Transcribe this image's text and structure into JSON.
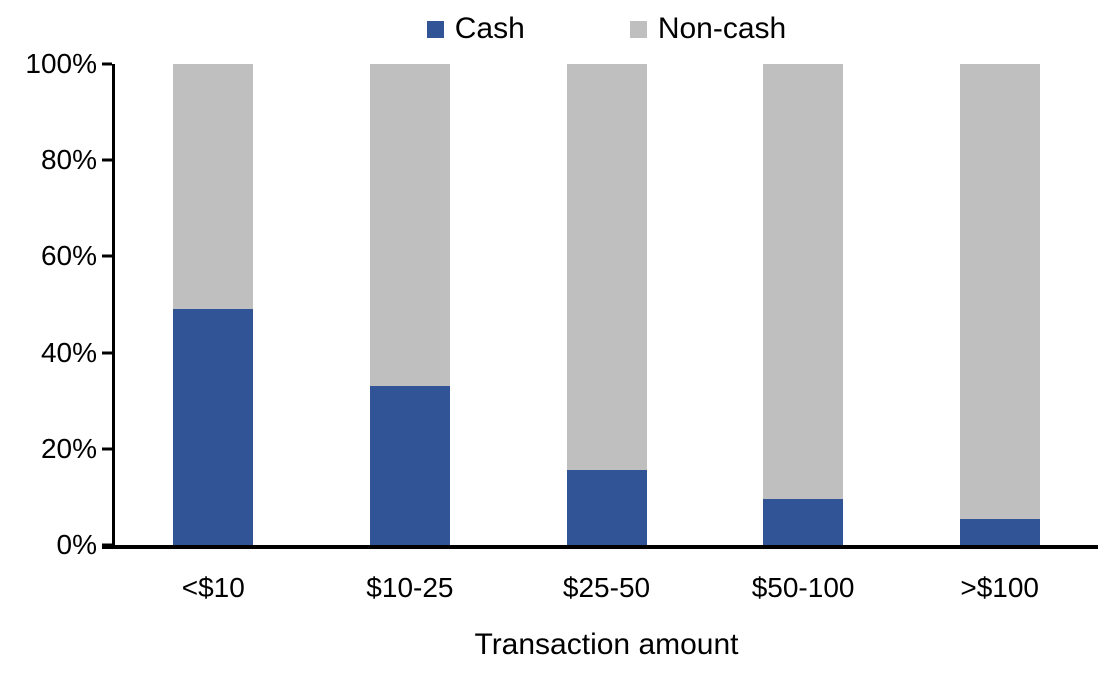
{
  "chart_data": {
    "type": "bar",
    "variant": "100-percent-stacked-column",
    "title": "",
    "xlabel": "Transaction amount",
    "ylabel": "",
    "categories": [
      "<$10",
      "$10-25",
      "$25-50",
      "$50-100",
      ">$100"
    ],
    "series": [
      {
        "name": "Cash",
        "color": "#305496",
        "values": [
          49,
          33,
          15.5,
          9.5,
          5.5
        ]
      },
      {
        "name": "Non-cash",
        "color": "#BFBFBF",
        "values": [
          51,
          67,
          84.5,
          90.5,
          94.5
        ]
      }
    ],
    "ylim": [
      0,
      100
    ],
    "yticks": [
      0,
      20,
      40,
      60,
      80,
      100
    ],
    "ytick_labels": [
      "0%",
      "20%",
      "40%",
      "60%",
      "80%",
      "100%"
    ],
    "grid": false,
    "legend_position": "top-center",
    "axis_color": "#000000",
    "background_color": "#FFFFFF"
  }
}
